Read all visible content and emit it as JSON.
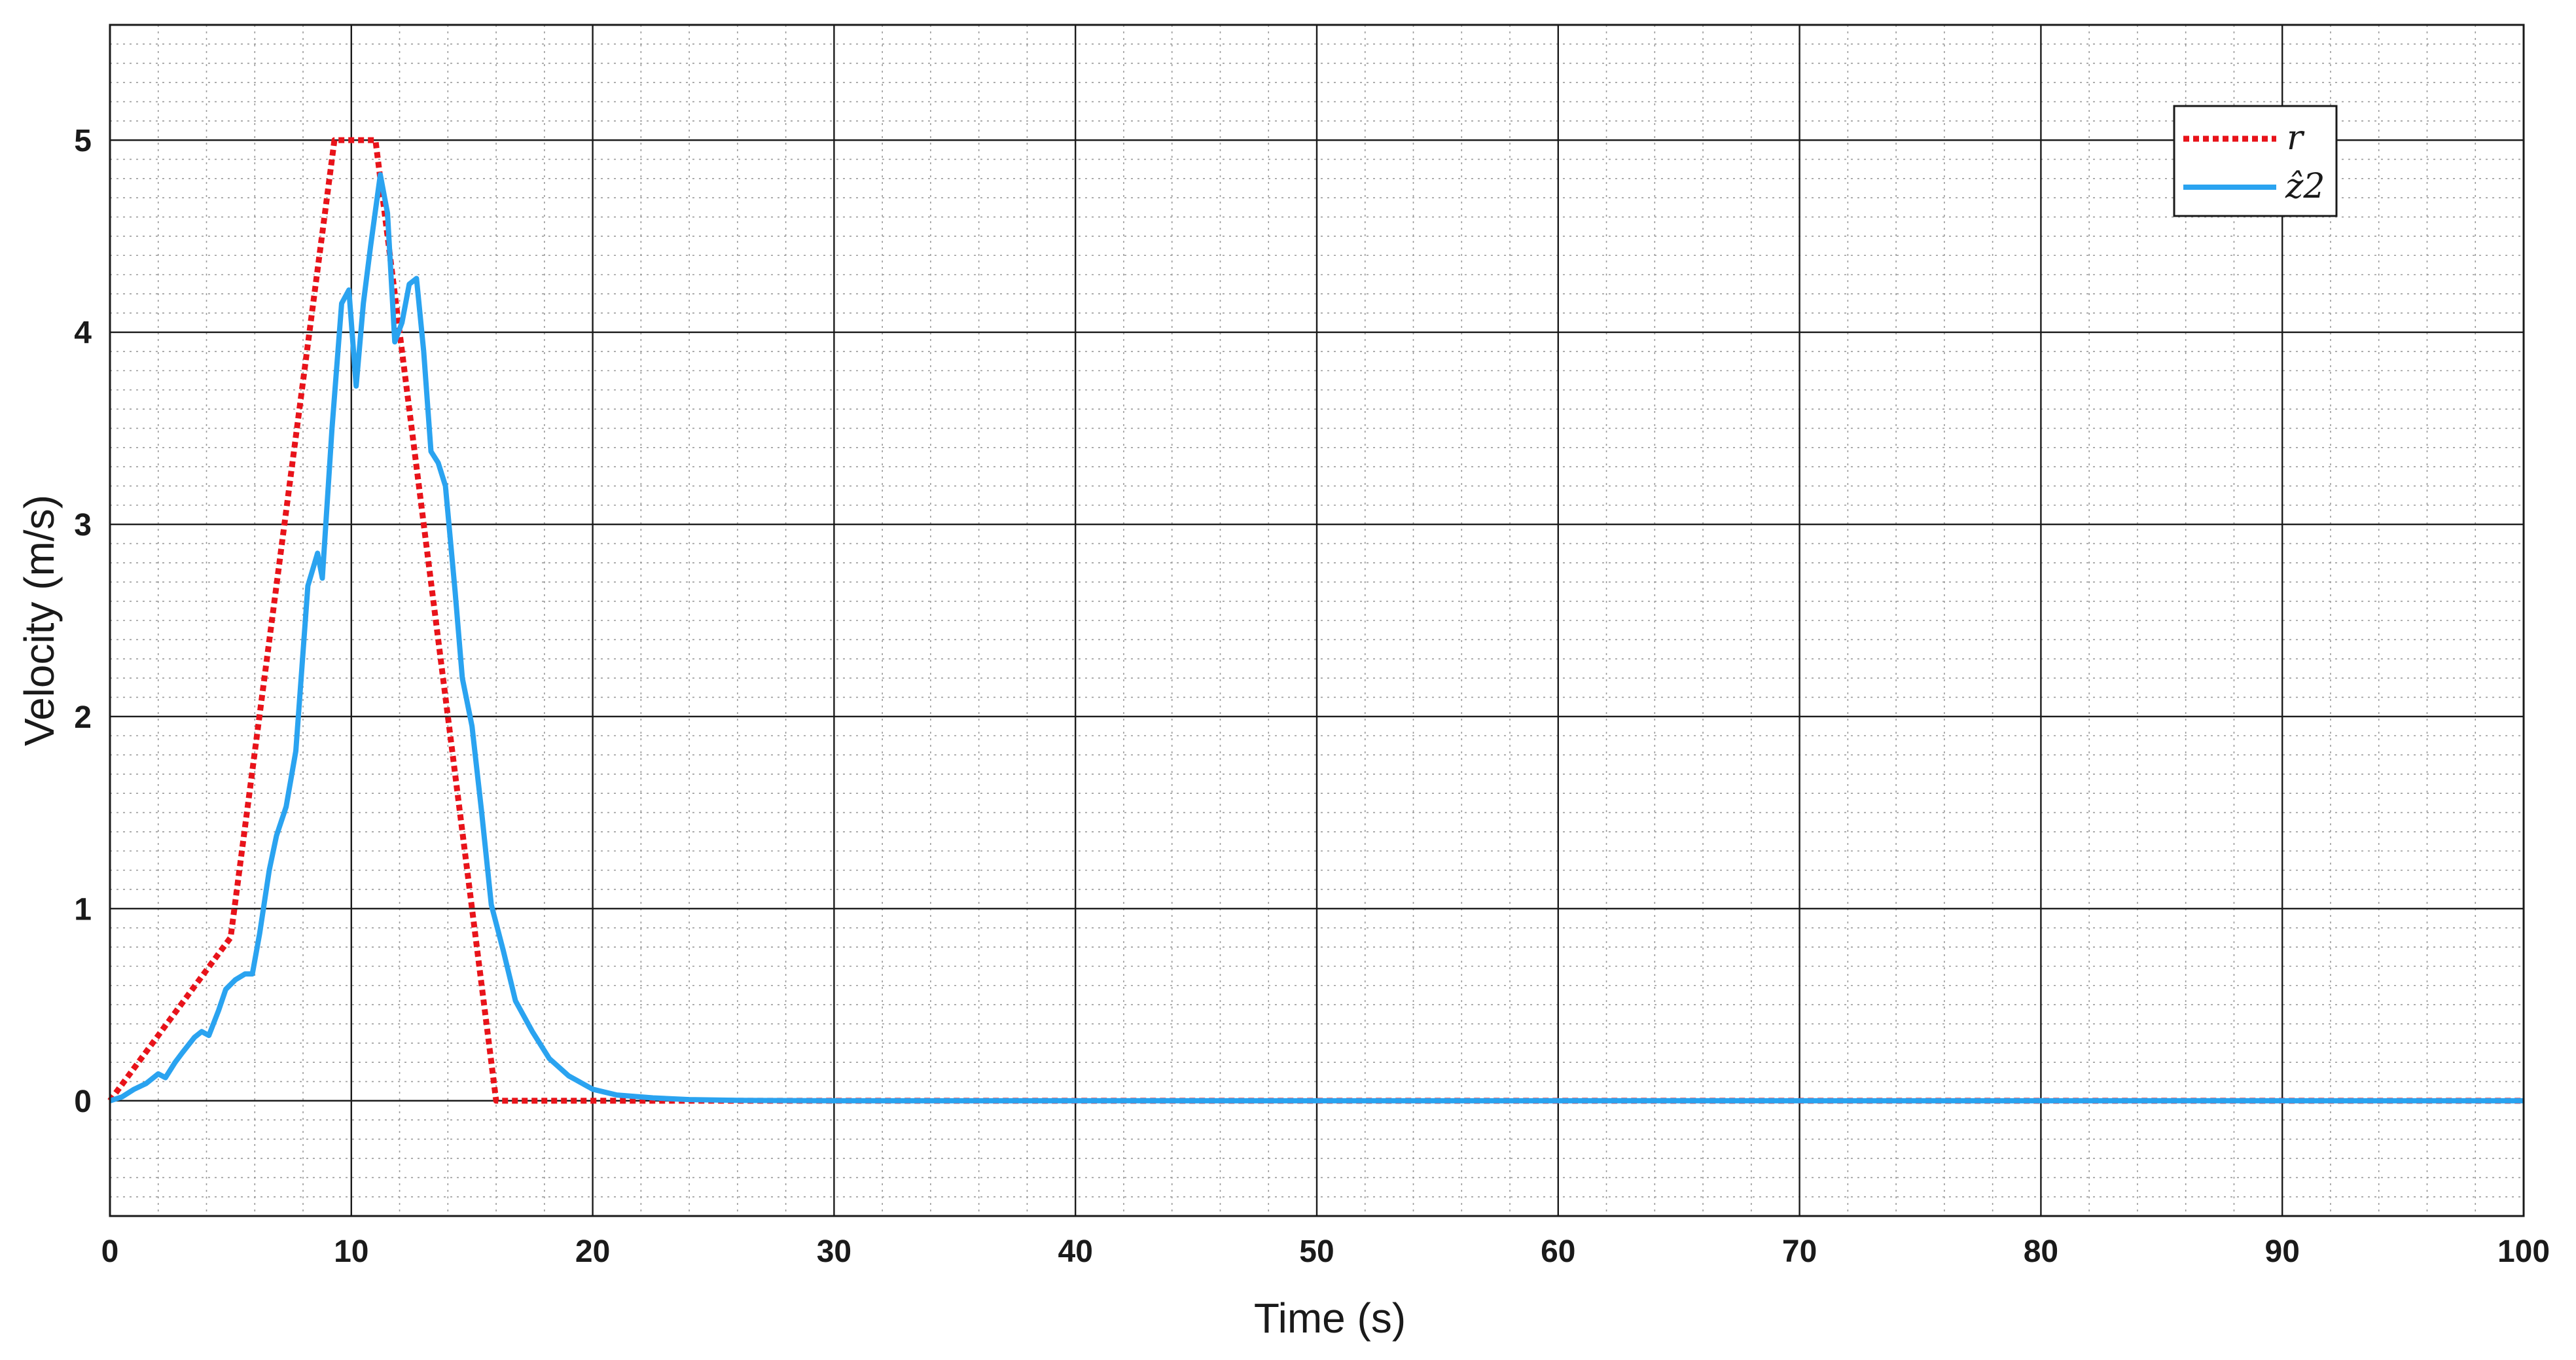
{
  "chart_data": {
    "type": "line",
    "title": "",
    "xlabel": "Time (s)",
    "ylabel": "Velocity (m/s)",
    "xlim": [
      0,
      100
    ],
    "ylim": [
      -0.6,
      5.6
    ],
    "x_ticks": [
      0,
      10,
      20,
      30,
      40,
      50,
      60,
      70,
      80,
      90,
      100
    ],
    "y_ticks": [
      0,
      1,
      2,
      3,
      4,
      5
    ],
    "grid": "major and minor",
    "legend_position": "top-right",
    "series": [
      {
        "name": "r",
        "color": "#e8131a",
        "style": "dotted",
        "x": [
          0,
          5,
          9.3,
          11,
          16,
          30,
          100
        ],
        "y": [
          0,
          0.85,
          5.0,
          5.0,
          0,
          0,
          0
        ]
      },
      {
        "name": "ẑ2",
        "color": "#2aa3f0",
        "style": "solid",
        "x": [
          0,
          0.5,
          1,
          1.5,
          2,
          2.3,
          2.7,
          3,
          3.5,
          3.8,
          4.1,
          4.5,
          4.8,
          5.2,
          5.6,
          5.9,
          6.2,
          6.6,
          6.9,
          7.3,
          7.7,
          8.2,
          8.6,
          8.8,
          9.2,
          9.6,
          9.9,
          10.2,
          10.5,
          10.8,
          11.2,
          11.5,
          11.8,
          12.1,
          12.4,
          12.7,
          13,
          13.3,
          13.6,
          13.9,
          14.3,
          14.6,
          15,
          15.4,
          15.8,
          16.3,
          16.8,
          17.5,
          18.2,
          19,
          20,
          21,
          22.5,
          24,
          26,
          30,
          40,
          100
        ],
        "y": [
          0,
          0.02,
          0.06,
          0.09,
          0.14,
          0.12,
          0.2,
          0.25,
          0.33,
          0.36,
          0.34,
          0.47,
          0.58,
          0.63,
          0.66,
          0.66,
          0.87,
          1.2,
          1.38,
          1.53,
          1.82,
          2.68,
          2.85,
          2.72,
          3.5,
          4.15,
          4.22,
          3.72,
          4.15,
          4.45,
          4.82,
          4.62,
          3.95,
          4.05,
          4.25,
          4.28,
          3.9,
          3.38,
          3.32,
          3.2,
          2.65,
          2.2,
          1.95,
          1.5,
          1.02,
          0.78,
          0.52,
          0.36,
          0.22,
          0.13,
          0.06,
          0.03,
          0.015,
          0.006,
          0.002,
          0,
          0,
          0
        ]
      }
    ]
  }
}
